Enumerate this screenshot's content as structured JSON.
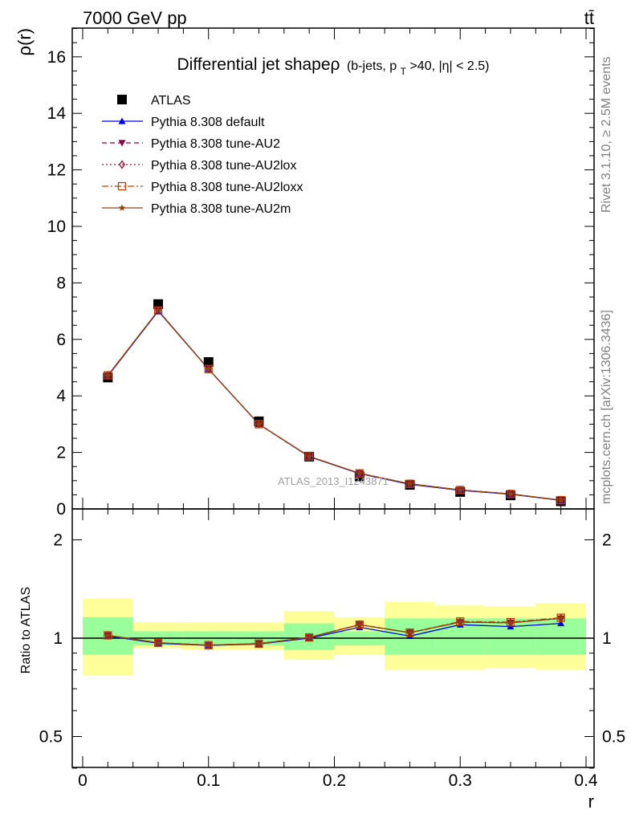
{
  "header": {
    "left": "7000 GeV pp",
    "right": "tt̄"
  },
  "title": {
    "main": "Differential jet shapeρ",
    "sub_prefix": "(b-jets, p",
    "sub_sub": "T",
    "sub_suffix": ">40, |η| < 2.5)"
  },
  "side_labels": {
    "rivet": "Rivet 3.1.10, ≥ 2.5M events",
    "mcplots": "mcplots.cern.ch [arXiv:1306.3436]"
  },
  "watermark": "ATLAS_2013_I1243871",
  "colors": {
    "atlas": "#000000",
    "default": "#0000e0",
    "au2": "#8b0040",
    "au2lox": "#a01030",
    "au2loxx": "#c04000",
    "au2m": "#8b4513",
    "band_inner": "#99ff99",
    "band_outer": "#ffff99"
  },
  "chart_data": [
    {
      "type": "line",
      "xlabel": "r",
      "ylabel": "ρ(r)",
      "xlim": [
        0,
        0.4
      ],
      "ylim": [
        0,
        17
      ],
      "y_ticks": [
        "0",
        "2",
        "4",
        "6",
        "8",
        "10",
        "12",
        "14",
        "16"
      ],
      "legend_position": "top-left",
      "x": [
        0.02,
        0.06,
        0.1,
        0.14,
        0.18,
        0.22,
        0.26,
        0.3,
        0.34,
        0.38
      ],
      "series": [
        {
          "name": "ATLAS",
          "marker": "square",
          "style": "points",
          "values": [
            4.65,
            7.25,
            5.2,
            3.1,
            1.85,
            1.15,
            0.85,
            0.6,
            0.48,
            0.27
          ]
        },
        {
          "name": "Pythia 8.308 default",
          "marker": "triangle-up",
          "style": "solid",
          "values": [
            4.7,
            7.0,
            4.95,
            3.0,
            1.85,
            1.25,
            0.87,
            0.66,
            0.52,
            0.3
          ]
        },
        {
          "name": "Pythia 8.308 tune-AU2",
          "marker": "triangle-down",
          "style": "dashed",
          "values": [
            4.72,
            7.02,
            4.95,
            3.0,
            1.85,
            1.26,
            0.89,
            0.67,
            0.53,
            0.31
          ]
        },
        {
          "name": "Pythia 8.308 tune-AU2lox",
          "marker": "diamond-open",
          "style": "dotted",
          "values": [
            4.72,
            7.02,
            4.95,
            3.0,
            1.86,
            1.26,
            0.89,
            0.67,
            0.53,
            0.31
          ]
        },
        {
          "name": "Pythia 8.308 tune-AU2loxx",
          "marker": "square-open",
          "style": "dashdot",
          "values": [
            4.73,
            7.02,
            4.95,
            3.0,
            1.86,
            1.26,
            0.89,
            0.67,
            0.53,
            0.31
          ]
        },
        {
          "name": "Pythia 8.308 tune-AU2m",
          "marker": "star",
          "style": "solid",
          "values": [
            4.72,
            7.02,
            4.95,
            3.0,
            1.86,
            1.26,
            0.89,
            0.67,
            0.53,
            0.31
          ]
        }
      ]
    },
    {
      "type": "line",
      "xlabel": "r",
      "ylabel": "Ratio to ATLAS",
      "xlim": [
        0,
        0.4
      ],
      "ylim": [
        0.38,
        2.35
      ],
      "y_scale": "log",
      "x_ticks": [
        "0",
        "0.1",
        "0.2",
        "0.3",
        "0.4"
      ],
      "y_ticks": [
        "0.5",
        "1",
        "2"
      ],
      "bins": [
        [
          0.0,
          0.04
        ],
        [
          0.04,
          0.08
        ],
        [
          0.08,
          0.12
        ],
        [
          0.12,
          0.16
        ],
        [
          0.16,
          0.2
        ],
        [
          0.2,
          0.24
        ],
        [
          0.24,
          0.28
        ],
        [
          0.28,
          0.32
        ],
        [
          0.32,
          0.36
        ],
        [
          0.36,
          0.4
        ]
      ],
      "band_inner": [
        [
          0.89,
          1.16
        ],
        [
          0.95,
          1.05
        ],
        [
          0.95,
          1.05
        ],
        [
          0.95,
          1.05
        ],
        [
          0.92,
          1.11
        ],
        [
          0.95,
          1.05
        ],
        [
          0.89,
          1.15
        ],
        [
          0.89,
          1.15
        ],
        [
          0.89,
          1.15
        ],
        [
          0.89,
          1.15
        ]
      ],
      "band_outer": [
        [
          0.77,
          1.32
        ],
        [
          0.93,
          1.12
        ],
        [
          0.92,
          1.12
        ],
        [
          0.92,
          1.12
        ],
        [
          0.86,
          1.21
        ],
        [
          0.89,
          1.16
        ],
        [
          0.8,
          1.29
        ],
        [
          0.8,
          1.26
        ],
        [
          0.81,
          1.25
        ],
        [
          0.8,
          1.28
        ]
      ],
      "x": [
        0.02,
        0.06,
        0.1,
        0.14,
        0.18,
        0.22,
        0.26,
        0.3,
        0.34,
        0.38
      ],
      "series": [
        {
          "name": "Pythia 8.308 default",
          "values": [
            1.015,
            0.965,
            0.95,
            0.96,
            1.0,
            1.08,
            1.015,
            1.1,
            1.085,
            1.11
          ]
        },
        {
          "name": "Pythia 8.308 tune-AU2",
          "values": [
            1.02,
            0.968,
            0.952,
            0.962,
            1.005,
            1.1,
            1.04,
            1.12,
            1.115,
            1.15
          ]
        },
        {
          "name": "Pythia 8.308 tune-AU2lox",
          "values": [
            1.02,
            0.968,
            0.952,
            0.962,
            1.005,
            1.1,
            1.04,
            1.12,
            1.115,
            1.15
          ]
        },
        {
          "name": "Pythia 8.308 tune-AU2loxx",
          "values": [
            1.02,
            0.968,
            0.952,
            0.962,
            1.005,
            1.1,
            1.04,
            1.125,
            1.12,
            1.155
          ]
        },
        {
          "name": "Pythia 8.308 tune-AU2m",
          "values": [
            1.02,
            0.968,
            0.952,
            0.962,
            1.005,
            1.1,
            1.04,
            1.12,
            1.115,
            1.15
          ]
        }
      ]
    }
  ]
}
